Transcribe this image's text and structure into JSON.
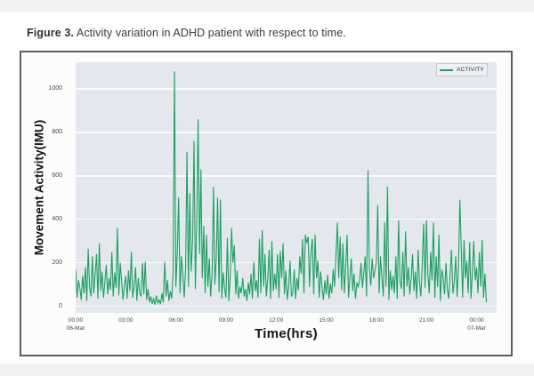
{
  "caption": {
    "label": "Figure 3.",
    "text": " Activity variation in ADHD patient with respect to time."
  },
  "chart_data": {
    "type": "line",
    "xlabel": "Time(hrs)",
    "ylabel": "Movement Activity(IMU)",
    "legend": [
      "ACTIVITY"
    ],
    "line_color": "#1aa05f",
    "plot_bg": "#e5e7ef",
    "grid_color": "#ffffff",
    "grid": "horizontal-only",
    "legend_position": "upper-right",
    "ylim": [
      -30,
      1122
    ],
    "xlim_hours": [
      0,
      25.2
    ],
    "y_ticks": [
      0,
      200,
      400,
      600,
      800,
      1000
    ],
    "x_ticks": [
      {
        "hour": 0,
        "label": "00:00",
        "sub": "06-Mar"
      },
      {
        "hour": 3,
        "label": "03:00"
      },
      {
        "hour": 6,
        "label": "06:00"
      },
      {
        "hour": 9,
        "label": "09:00"
      },
      {
        "hour": 12,
        "label": "12:00"
      },
      {
        "hour": 15,
        "label": "15:00"
      },
      {
        "hour": 18,
        "label": "18:00"
      },
      {
        "hour": 21,
        "label": "21:00"
      },
      {
        "hour": 24,
        "label": "00:00",
        "sub": "07-Mar"
      }
    ],
    "start_hour": 0,
    "interval_minutes": 5,
    "values": [
      170,
      40,
      120,
      85,
      30,
      140,
      60,
      180,
      25,
      265,
      90,
      45,
      230,
      60,
      150,
      240,
      35,
      290,
      70,
      160,
      40,
      110,
      190,
      55,
      130,
      75,
      250,
      45,
      155,
      85,
      360,
      50,
      200,
      120,
      30,
      95,
      140,
      35,
      165,
      70,
      250,
      40,
      90,
      180,
      25,
      130,
      60,
      45,
      200,
      55,
      205,
      30,
      80,
      20,
      45,
      12,
      35,
      8,
      50,
      15,
      30,
      10,
      60,
      18,
      205,
      45,
      120,
      25,
      70,
      35,
      150,
      1080,
      90,
      250,
      500,
      60,
      230,
      150,
      40,
      180,
      710,
      90,
      520,
      160,
      300,
      760,
      80,
      410,
      860,
      240,
      630,
      130,
      370,
      60,
      330,
      90,
      220,
      45,
      150,
      550,
      100,
      220,
      500,
      65,
      490,
      35,
      155,
      80,
      40,
      315,
      25,
      130,
      360,
      200,
      280,
      55,
      165,
      35,
      90,
      60,
      130,
      45,
      80,
      25,
      110,
      55,
      150,
      35,
      205,
      70,
      120,
      40,
      310,
      60,
      350,
      90,
      240,
      45,
      130,
      260,
      35,
      300,
      70,
      150,
      80,
      240,
      40,
      255,
      130,
      290,
      55,
      165,
      30,
      90,
      210,
      45,
      60,
      170,
      35,
      130,
      75,
      230,
      150,
      310,
      60,
      330,
      290,
      320,
      90,
      250,
      310,
      55,
      330,
      130,
      210,
      40,
      160,
      85,
      30,
      120,
      55,
      145,
      35,
      105,
      60,
      170,
      90,
      235,
      385,
      130,
      320,
      75,
      290,
      60,
      180,
      330,
      40,
      130,
      220,
      70,
      150,
      35,
      110,
      90,
      120,
      200,
      85,
      155,
      230,
      45,
      625,
      180,
      95,
      220,
      130,
      160,
      205,
      465,
      60,
      230,
      130,
      45,
      385,
      90,
      550,
      30,
      165,
      75,
      140,
      60,
      230,
      35,
      395,
      120,
      80,
      250,
      45,
      345,
      90,
      180,
      55,
      130,
      240,
      70,
      160,
      35,
      260,
      110,
      45,
      200,
      380,
      85,
      395,
      150,
      60,
      250,
      120,
      385,
      40,
      230,
      90,
      330,
      25,
      170,
      130,
      55,
      200,
      80,
      35,
      150,
      260,
      60,
      110,
      230,
      45,
      175,
      490,
      265,
      40,
      305,
      130,
      210,
      60,
      295,
      35,
      155,
      300,
      120,
      180,
      60,
      250,
      90,
      305,
      40,
      150,
      20
    ]
  }
}
